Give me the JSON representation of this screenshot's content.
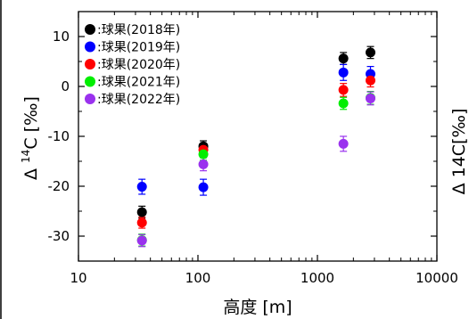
{
  "chart_data": {
    "type": "scatter",
    "xlabel": "高度 [m]",
    "ylabel_main": "Δ",
    "ylabel_sup": "14",
    "ylabel_tail": "C [‰]",
    "clipped_ylabel_text": "Δ 14C[‰]",
    "x_scale": "log",
    "xlim": [
      10,
      10000
    ],
    "ylim": [
      -35,
      15
    ],
    "x_ticks": [
      10,
      100,
      1000,
      10000
    ],
    "x_tick_labels": [
      "10",
      "100",
      "1000",
      "10000"
    ],
    "y_ticks": [
      10,
      0,
      -10,
      -20,
      -30
    ],
    "y_tick_labels": [
      "10",
      "0",
      "-10",
      "-20",
      "-30"
    ],
    "legend_position": "top-left",
    "grid": false,
    "error_bars": true,
    "series": [
      {
        "name": ":球果(2018年)",
        "color": "#000000",
        "points": [
          {
            "x": 34,
            "y": -25.2,
            "err": 1.2
          },
          {
            "x": 111,
            "y": -12.0,
            "err": 1.1
          },
          {
            "x": 1650,
            "y": 5.6,
            "err": 1.2
          },
          {
            "x": 2780,
            "y": 6.8,
            "err": 1.2
          }
        ]
      },
      {
        "name": ":球果(2019年)",
        "color": "#0000ff",
        "points": [
          {
            "x": 34,
            "y": -20.1,
            "err": 1.5
          },
          {
            "x": 111,
            "y": -20.2,
            "err": 1.6
          },
          {
            "x": 1650,
            "y": 2.8,
            "err": 1.6
          },
          {
            "x": 2780,
            "y": 2.5,
            "err": 1.5
          }
        ]
      },
      {
        "name": ":球果(2020年)",
        "color": "#ff0000",
        "points": [
          {
            "x": 34,
            "y": -27.3,
            "err": 1.1
          },
          {
            "x": 111,
            "y": -12.7,
            "err": 1.1
          },
          {
            "x": 1650,
            "y": -0.7,
            "err": 1.3
          },
          {
            "x": 2780,
            "y": 1.2,
            "err": 1.3
          }
        ]
      },
      {
        "name": ":球果(2021年)",
        "color": "#00ee00",
        "points": [
          {
            "x": 34,
            "y": -30.8,
            "err": 1.2
          },
          {
            "x": 111,
            "y": -13.6,
            "err": 1.2
          },
          {
            "x": 1650,
            "y": -3.4,
            "err": 1.2
          },
          {
            "x": 2780,
            "y": -2.3,
            "err": 1.3
          }
        ]
      },
      {
        "name": ":球果(2022年)",
        "color": "#9a32ee",
        "points": [
          {
            "x": 34,
            "y": -30.9,
            "err": 1.2
          },
          {
            "x": 111,
            "y": -15.6,
            "err": 1.3
          },
          {
            "x": 1650,
            "y": -11.5,
            "err": 1.5
          },
          {
            "x": 2780,
            "y": -2.4,
            "err": 1.3
          }
        ]
      }
    ]
  }
}
